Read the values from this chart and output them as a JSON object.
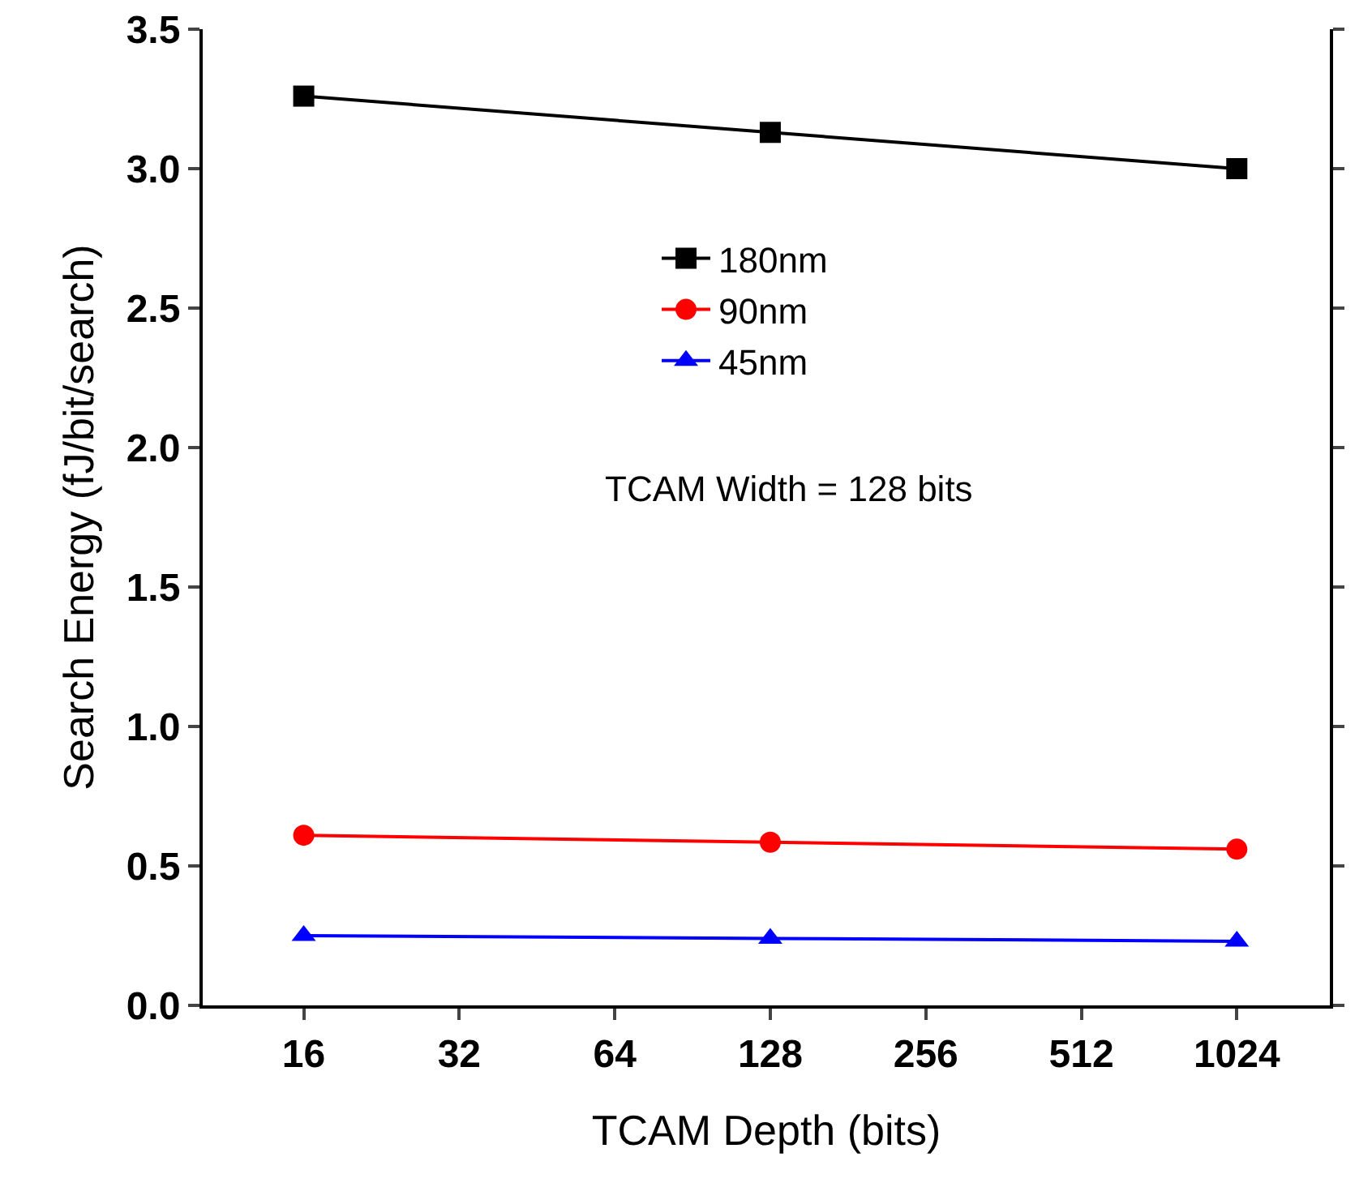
{
  "chart_data": {
    "type": "line",
    "xlabel": "TCAM Depth (bits)",
    "ylabel": "Search Energy (fJ/bit/search)",
    "log": "x",
    "x": [
      16,
      128,
      1024
    ],
    "series": [
      {
        "name": "180nm",
        "color": "#000000",
        "marker": "square",
        "values": [
          3.26,
          3.13,
          3.0
        ]
      },
      {
        "name": "90nm",
        "color": "#ff0000",
        "marker": "circle",
        "values": [
          0.61,
          0.585,
          0.56
        ]
      },
      {
        "name": "45nm",
        "color": "#0000ff",
        "marker": "triangle",
        "values": [
          0.25,
          0.24,
          0.23
        ]
      }
    ],
    "xlim": [
      10.2,
      1550
    ],
    "xticks": [
      16,
      32,
      64,
      128,
      256,
      512,
      1024
    ],
    "ylim": [
      0,
      3.5
    ],
    "yticks": [
      {
        "value": 0,
        "label": "0.0"
      },
      {
        "value": 0.5,
        "label": "0.5"
      },
      {
        "value": 1,
        "label": "1.0"
      },
      {
        "value": 1.5,
        "label": "1.5"
      },
      {
        "value": 2,
        "label": "2.0"
      },
      {
        "value": 2.5,
        "label": "2.5"
      },
      {
        "value": 3,
        "label": "3.0"
      },
      {
        "value": 3.5,
        "label": "3.5"
      }
    ],
    "grid": false,
    "legend": "top",
    "line_style": "solid",
    "annotations": [
      "TCAM Width = 128 bits"
    ]
  }
}
